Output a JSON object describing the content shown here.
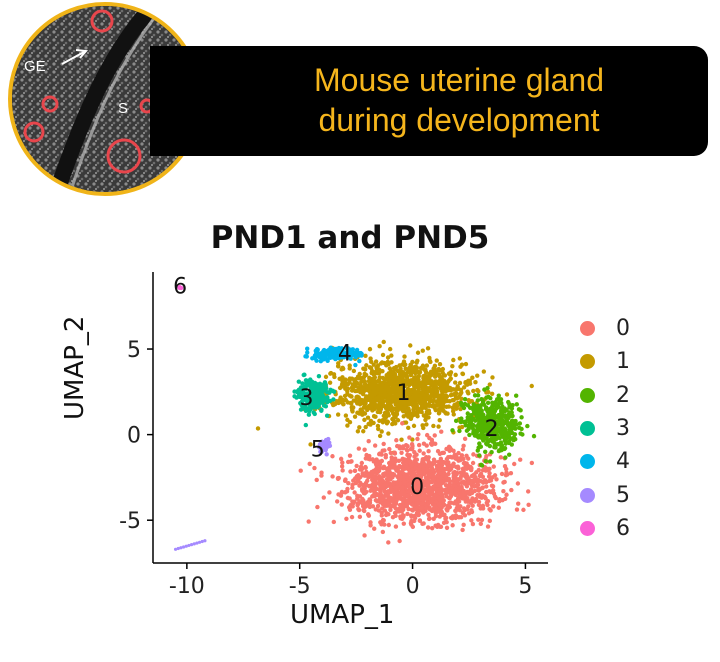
{
  "banner": {
    "line1": "Mouse uterine gland",
    "line2": "during development",
    "image_labels": {
      "ge": "GE",
      "s": "S"
    }
  },
  "colors": {
    "banner_bg": "#000000",
    "banner_text": "#f5b51c",
    "ring": "#f0b419"
  },
  "chart_data": {
    "type": "scatter",
    "title": "PND1 and PND5",
    "xlabel": "UMAP_1",
    "ylabel": "UMAP_2",
    "xlim": [
      -11.5,
      6.0
    ],
    "ylim": [
      -7.5,
      9.5
    ],
    "xticks": [
      -10,
      -5,
      0,
      5
    ],
    "yticks": [
      -5,
      0,
      5
    ],
    "grid": false,
    "legend_position": "right",
    "series": [
      {
        "name": "0",
        "color": "#F8766D",
        "center": [
          0.3,
          -3.0
        ],
        "spread": [
          3.0,
          2.0
        ],
        "label_at": [
          0.2,
          -3.0
        ]
      },
      {
        "name": "1",
        "color": "#C49A00",
        "center": [
          -0.5,
          2.5
        ],
        "spread": [
          2.7,
          1.6
        ],
        "label_at": [
          -0.4,
          2.5
        ]
      },
      {
        "name": "2",
        "color": "#53B400",
        "center": [
          3.5,
          0.6
        ],
        "spread": [
          1.0,
          1.3
        ],
        "label_at": [
          3.5,
          0.4
        ]
      },
      {
        "name": "3",
        "color": "#00C094",
        "center": [
          -4.4,
          2.3
        ],
        "spread": [
          0.7,
          0.9
        ],
        "label_at": [
          -4.7,
          2.2
        ]
      },
      {
        "name": "4",
        "color": "#00B6EB",
        "center": [
          -3.5,
          4.7
        ],
        "spread": [
          1.0,
          0.3
        ],
        "label_at": [
          -3.0,
          4.8
        ]
      },
      {
        "name": "5",
        "color": "#A58AFF",
        "center": [
          -3.9,
          -0.6
        ],
        "spread": [
          0.2,
          0.4
        ],
        "label_at": [
          -4.2,
          -0.8
        ]
      },
      {
        "name": "6",
        "color": "#FB61D7",
        "center": [
          -10.3,
          8.6
        ],
        "spread": [
          0.05,
          0.05
        ],
        "label_at": [
          -10.3,
          8.7
        ]
      }
    ]
  }
}
